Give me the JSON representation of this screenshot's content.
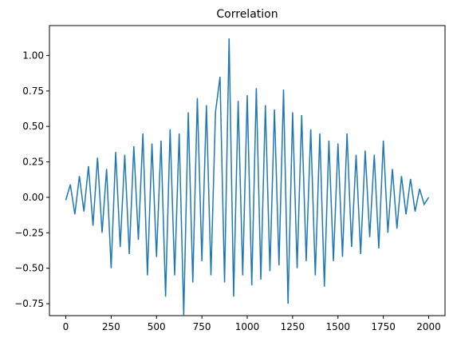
{
  "chart_data": {
    "type": "line",
    "title": "Correlation",
    "xlabel": "",
    "ylabel": "",
    "xlim": [
      -90,
      2090
    ],
    "ylim": [
      -0.834,
      1.211
    ],
    "xticks": [
      0,
      250,
      500,
      750,
      1000,
      1250,
      1500,
      1750,
      2000
    ],
    "yticks": [
      -0.75,
      -0.5,
      -0.25,
      0.0,
      0.25,
      0.5,
      0.75,
      1.0
    ],
    "ytick_labels": [
      "−0.75",
      "−0.50",
      "−0.25",
      "0.00",
      "0.25",
      "0.50",
      "0.75",
      "1.00"
    ],
    "grid": false,
    "series": [
      {
        "color": "#1f77b4",
        "x": [
          0,
          25,
          50,
          75,
          100,
          125,
          150,
          175,
          200,
          225,
          250,
          275,
          300,
          325,
          350,
          375,
          400,
          425,
          450,
          475,
          500,
          525,
          550,
          575,
          600,
          625,
          650,
          675,
          700,
          725,
          750,
          775,
          800,
          825,
          850,
          875,
          900,
          925,
          950,
          975,
          1000,
          1025,
          1050,
          1075,
          1100,
          1125,
          1150,
          1175,
          1200,
          1225,
          1250,
          1275,
          1300,
          1325,
          1350,
          1375,
          1400,
          1425,
          1450,
          1475,
          1500,
          1525,
          1550,
          1575,
          1600,
          1625,
          1650,
          1675,
          1700,
          1725,
          1750,
          1775,
          1800,
          1825,
          1850,
          1875,
          1900,
          1925,
          1950,
          1975,
          2000
        ],
        "y": [
          -0.02,
          0.09,
          -0.12,
          0.15,
          -0.1,
          0.22,
          -0.2,
          0.28,
          -0.25,
          0.2,
          -0.5,
          0.32,
          -0.35,
          0.3,
          -0.4,
          0.36,
          -0.3,
          0.45,
          -0.55,
          0.38,
          -0.42,
          0.4,
          -0.7,
          0.48,
          -0.55,
          0.45,
          -0.83,
          0.6,
          -0.6,
          0.7,
          -0.45,
          0.65,
          -0.55,
          0.6,
          0.85,
          -0.6,
          1.12,
          -0.7,
          0.68,
          -0.55,
          0.72,
          -0.62,
          0.77,
          -0.58,
          0.65,
          -0.52,
          0.62,
          -0.48,
          0.76,
          -0.75,
          0.6,
          -0.5,
          0.58,
          -0.45,
          0.48,
          -0.55,
          0.45,
          -0.63,
          0.4,
          -0.45,
          0.38,
          -0.42,
          0.45,
          -0.35,
          0.3,
          -0.4,
          0.33,
          -0.28,
          0.3,
          -0.36,
          0.4,
          -0.25,
          0.2,
          -0.22,
          0.15,
          -0.12,
          0.13,
          -0.1,
          0.06,
          -0.05,
          0.0
        ]
      }
    ]
  }
}
